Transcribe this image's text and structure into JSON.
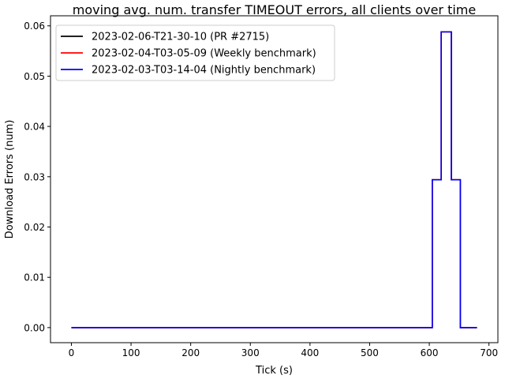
{
  "chart_data": {
    "type": "line",
    "title": "moving avg. num. transfer TIMEOUT errors, all clients over time",
    "xlabel": "Tick (s)",
    "ylabel": "Download Errors (num)",
    "xlim": [
      -35,
      715
    ],
    "ylim": [
      -0.003,
      0.062
    ],
    "x_ticks": [
      0,
      100,
      200,
      300,
      400,
      500,
      600,
      700
    ],
    "y_ticks": [
      0.0,
      0.01,
      0.02,
      0.03,
      0.04,
      0.05,
      0.06
    ],
    "y_tick_labels": [
      "0.00",
      "0.01",
      "0.02",
      "0.03",
      "0.04",
      "0.05",
      "0.06"
    ],
    "grid": false,
    "legend_position": "top-left",
    "step": "post",
    "series": [
      {
        "name": "2023-02-06-T21-30-10 (PR #2715)",
        "color": "#000000",
        "x": [
          0,
          602,
          605,
          618,
          620,
          635,
          637,
          650,
          652,
          680
        ],
        "y": [
          0,
          0,
          0.0294,
          0.0294,
          0.0588,
          0.0588,
          0.0294,
          0.0294,
          0,
          0
        ]
      },
      {
        "name": "2023-02-04-T03-05-09 (Weekly benchmark)",
        "color": "#ff0000",
        "x": [
          0,
          602,
          605,
          618,
          620,
          635,
          637,
          650,
          652,
          680
        ],
        "y": [
          0,
          0,
          0.0294,
          0.0294,
          0.0588,
          0.0588,
          0.0294,
          0.0294,
          0,
          0
        ]
      },
      {
        "name": "2023-02-03-T03-14-04 (Nightly benchmark)",
        "color": "#0000ff",
        "x": [
          0,
          602,
          605,
          618,
          620,
          635,
          637,
          650,
          652,
          680
        ],
        "y": [
          0,
          0,
          0.0294,
          0.0294,
          0.0588,
          0.0588,
          0.0294,
          0.0294,
          0,
          0
        ]
      }
    ]
  }
}
